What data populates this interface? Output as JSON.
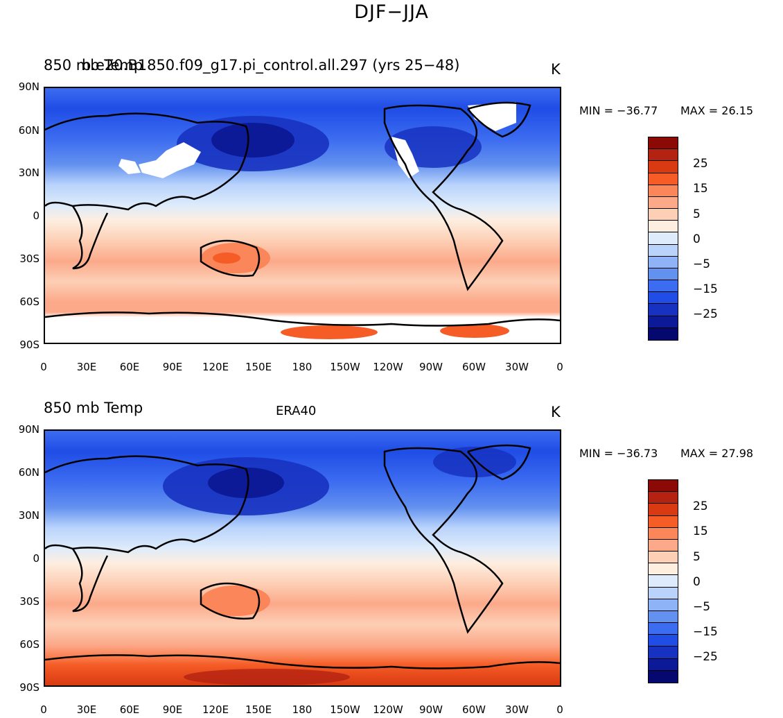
{
  "figure_title": "DJF−JJA",
  "chart_data": [
    {
      "type": "heatmap",
      "title_left": "850 mb Temp",
      "title_center": "b.e20.B1850.f09_g17.pi_control.all.297 (yrs 25−48)",
      "title_right": "K",
      "min_label": "MIN = −36.77",
      "max_label": "MAX =  26.15",
      "min": -36.77,
      "max": 26.15,
      "lat_ticks": [
        "90N",
        "60N",
        "30N",
        "0",
        "30S",
        "60S",
        "90S"
      ],
      "lon_ticks": [
        "0",
        "30E",
        "60E",
        "90E",
        "120E",
        "150E",
        "180",
        "150W",
        "120W",
        "90W",
        "60W",
        "30W",
        "0"
      ],
      "ylim": [
        -90,
        90
      ],
      "xlim": [
        0,
        360
      ],
      "colorbar_labels": [
        "25",
        "15",
        "5",
        "0",
        "−5",
        "−15",
        "−25"
      ]
    },
    {
      "type": "heatmap",
      "title_left": "850 mb Temp",
      "title_center": "ERA40",
      "title_right": "K",
      "min_label": "MIN = −36.73",
      "max_label": "MAX =  27.98",
      "min": -36.73,
      "max": 27.98,
      "lat_ticks": [
        "90N",
        "60N",
        "30N",
        "0",
        "30S",
        "60S",
        "90S"
      ],
      "lon_ticks": [
        "0",
        "30E",
        "60E",
        "90E",
        "120E",
        "150E",
        "180",
        "150W",
        "120W",
        "90W",
        "60W",
        "30W",
        "0"
      ],
      "ylim": [
        -90,
        90
      ],
      "xlim": [
        0,
        360
      ],
      "colorbar_labels": [
        "25",
        "15",
        "5",
        "0",
        "−5",
        "−15",
        "−25"
      ]
    }
  ],
  "colorbar_colors": [
    "#8c0a05",
    "#b42211",
    "#d93a12",
    "#f55c26",
    "#fa8659",
    "#fca98a",
    "#fdcfb5",
    "#fdeee0",
    "#ddebfb",
    "#b9d3fb",
    "#8eb3f6",
    "#6391ef",
    "#3c6cf0",
    "#1f4de6",
    "#1732c0",
    "#0c1a98",
    "#05086e"
  ]
}
